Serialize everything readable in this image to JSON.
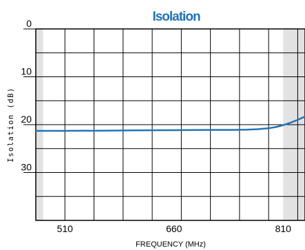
{
  "chart_data": {
    "type": "line",
    "title": "Isolation",
    "xlabel": "FREQUENCY (MHz)",
    "ylabel": "Isolation  (dB)",
    "x_ticks": [
      "510",
      "660",
      "810"
    ],
    "y_ticks": [
      "0",
      "10",
      "20",
      "30"
    ],
    "xlim": [
      470,
      840
    ],
    "ylim": [
      0,
      40
    ],
    "y_inverted": true,
    "grid": true,
    "shaded_bands": [
      [
        470,
        480
      ],
      [
        810,
        840
      ]
    ],
    "series": [
      {
        "color": "#1f74b8",
        "x": [
          470,
          510,
          560,
          610,
          660,
          710,
          740,
          760,
          775,
          790,
          800,
          810,
          820,
          830,
          840
        ],
        "y": [
          21.3,
          21.3,
          21.25,
          21.2,
          21.15,
          21.1,
          21.1,
          21.05,
          20.95,
          20.75,
          20.5,
          20.1,
          19.6,
          19.0,
          18.3
        ]
      }
    ],
    "colors": {
      "title": "#1f74b8",
      "band": "#e2e2e2",
      "grid": "#000000",
      "line": "#1f74b8"
    }
  }
}
